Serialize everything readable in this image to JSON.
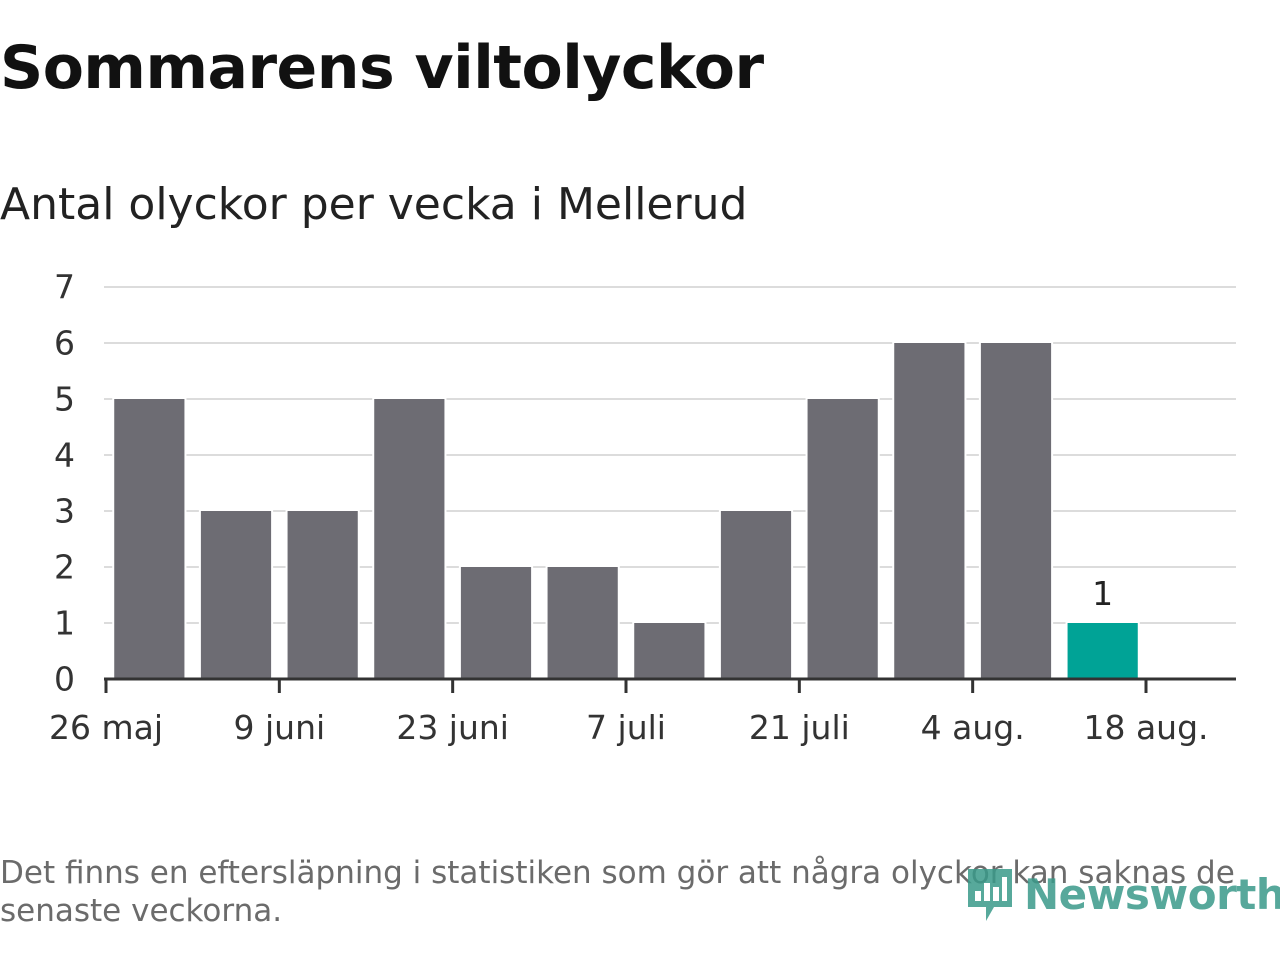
{
  "title": "Sommarens viltolyckor",
  "subtitle": "Antal olyckor per vecka i Mellerud",
  "footnote": "Det finns en eftersläpning i statistiken som gör att några olyckor kan saknas de senaste veckorna.",
  "logo": {
    "text": "Newsworthy",
    "icon": "newsworthy-logo-icon"
  },
  "colors": {
    "bar": "#6d6c73",
    "highlight": "#00a396",
    "grid": "#dcdcdc",
    "axis": "#333333"
  },
  "chart_data": {
    "type": "bar",
    "title": "Sommarens viltolyckor",
    "subtitle": "Antal olyckor per vecka i Mellerud",
    "xlabel": "",
    "ylabel": "",
    "x": [
      "2019-05-27",
      "2019-06-03",
      "2019-06-10",
      "2019-06-17",
      "2019-06-24",
      "2019-07-01",
      "2019-07-08",
      "2019-07-15",
      "2019-07-22",
      "2019-07-29",
      "2019-08-05",
      "2019-08-12"
    ],
    "values": [
      5,
      3,
      3,
      5,
      2,
      2,
      1,
      3,
      5,
      6,
      6,
      1
    ],
    "highlight_last": true,
    "data_labels": [
      {
        "x": "2019-08-12",
        "text": "1"
      }
    ],
    "ylim": [
      0,
      7
    ],
    "yticks": [
      "0",
      "1",
      "2",
      "3",
      "4",
      "5",
      "6",
      "7"
    ],
    "xticks": [
      {
        "date": "2019-05-26",
        "label": "26 maj"
      },
      {
        "date": "2019-06-09",
        "label": "9 juni"
      },
      {
        "date": "2019-06-23",
        "label": "23 juni"
      },
      {
        "date": "2019-07-07",
        "label": "7 juli"
      },
      {
        "date": "2019-07-21",
        "label": "21 juli"
      },
      {
        "date": "2019-08-04",
        "label": "4 aug."
      },
      {
        "date": "2019-08-18",
        "label": "18 aug."
      }
    ],
    "grid": true,
    "legend": "none"
  }
}
